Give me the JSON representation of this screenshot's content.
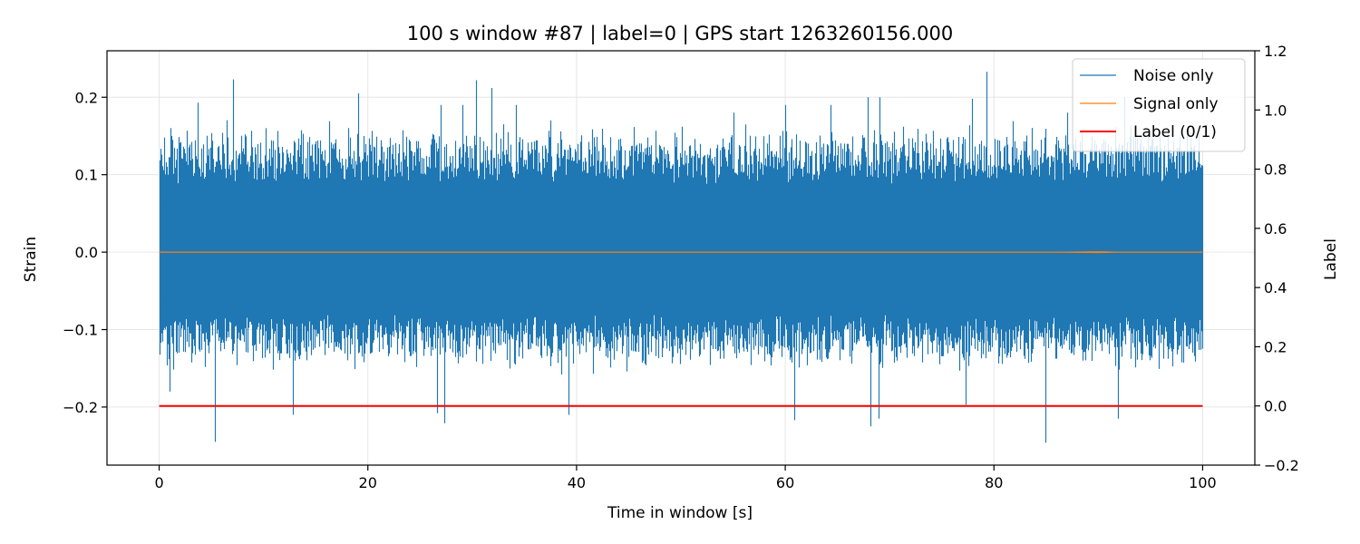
{
  "chart_data": {
    "type": "line",
    "title": "100 s window #87 | label=0 | GPS start 1263260156.000",
    "xlabel": "Time in window [s]",
    "ylabel": "Strain",
    "y2label": "Label",
    "xlim": [
      -5,
      105
    ],
    "ylim": [
      -0.275,
      0.26
    ],
    "y2lim": [
      -0.2,
      1.2
    ],
    "x_ticks": [
      0,
      20,
      40,
      60,
      80,
      100
    ],
    "x_tick_labels": [
      "0",
      "20",
      "40",
      "60",
      "80",
      "100"
    ],
    "y_ticks": [
      -0.2,
      -0.1,
      0.0,
      0.1,
      0.2
    ],
    "y_tick_labels": [
      "−0.2",
      "−0.1",
      "0.0",
      "0.1",
      "0.2"
    ],
    "y2_ticks": [
      -0.2,
      0.0,
      0.2,
      0.4,
      0.6,
      0.8,
      1.0,
      1.2
    ],
    "y2_tick_labels": [
      "−0.2",
      "0.0",
      "0.2",
      "0.4",
      "0.6",
      "0.8",
      "1.0",
      "1.2"
    ],
    "grid": true,
    "legend_position": "top-right",
    "series": [
      {
        "name": "Noise only",
        "color": "#1f77b4",
        "axis": "left",
        "x_range": [
          0,
          100
        ],
        "typical_envelope": [
          -0.13,
          0.14
        ],
        "peaks": [
          {
            "x": 0.5,
            "y": 0.148
          },
          {
            "x": 1.2,
            "y": 0.15
          },
          {
            "x": 3.7,
            "y": 0.193
          },
          {
            "x": 7.1,
            "y": 0.223
          },
          {
            "x": 10.2,
            "y": 0.16
          },
          {
            "x": 19.1,
            "y": 0.205
          },
          {
            "x": 27.0,
            "y": 0.19
          },
          {
            "x": 29.1,
            "y": 0.19
          },
          {
            "x": 30.4,
            "y": 0.222
          },
          {
            "x": 31.8,
            "y": 0.212
          },
          {
            "x": 34.2,
            "y": 0.19
          },
          {
            "x": 37.5,
            "y": 0.17
          },
          {
            "x": 55.0,
            "y": 0.18
          },
          {
            "x": 60.0,
            "y": 0.19
          },
          {
            "x": 64.3,
            "y": 0.19
          },
          {
            "x": 67.9,
            "y": 0.2
          },
          {
            "x": 69.0,
            "y": 0.2
          },
          {
            "x": 77.9,
            "y": 0.198
          },
          {
            "x": 79.3,
            "y": 0.233
          },
          {
            "x": 87.0,
            "y": 0.18
          },
          {
            "x": 92.5,
            "y": 0.2
          }
        ],
        "troughs": [
          {
            "x": 1.0,
            "y": -0.18
          },
          {
            "x": 5.3,
            "y": -0.245
          },
          {
            "x": 12.8,
            "y": -0.21
          },
          {
            "x": 26.6,
            "y": -0.208
          },
          {
            "x": 27.3,
            "y": -0.221
          },
          {
            "x": 39.2,
            "y": -0.21
          },
          {
            "x": 60.9,
            "y": -0.217
          },
          {
            "x": 68.2,
            "y": -0.225
          },
          {
            "x": 68.9,
            "y": -0.215
          },
          {
            "x": 77.3,
            "y": -0.197
          },
          {
            "x": 84.9,
            "y": -0.246
          },
          {
            "x": 91.9,
            "y": -0.215
          }
        ]
      },
      {
        "name": "Signal only",
        "color": "#ff7f0e",
        "axis": "left",
        "x_range": [
          0,
          100
        ],
        "value": 0.0,
        "chirp_region": [
          82,
          92
        ],
        "chirp_max_amplitude": 0.002
      },
      {
        "name": "Label (0/1)",
        "color": "#ff0000",
        "axis": "right",
        "x": [
          0,
          100
        ],
        "values": [
          0,
          0
        ]
      }
    ]
  }
}
